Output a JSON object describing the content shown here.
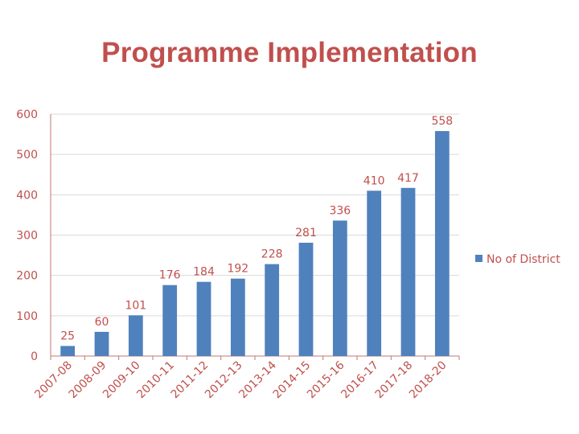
{
  "title": "Programme Implementation",
  "colors": {
    "bar": "#4f81bd",
    "text": "#c0504d",
    "axis": "#c07874",
    "grid": "#d9d9d9"
  },
  "chart_data": {
    "type": "bar",
    "title": "",
    "xlabel": "",
    "ylabel": "",
    "categories": [
      "2007-08",
      "2008-09",
      "2009-10",
      "2010-11",
      "2011-12",
      "2012-13",
      "2013-14",
      "2014-15",
      "2015-16",
      "2016-17",
      "2017-18",
      "2018-20"
    ],
    "series": [
      {
        "name": "No of District",
        "values": [
          25,
          60,
          101,
          176,
          184,
          192,
          228,
          281,
          336,
          410,
          417,
          558
        ]
      }
    ],
    "ylim": [
      0,
      600
    ],
    "yticks": [
      0,
      100,
      200,
      300,
      400,
      500,
      600
    ],
    "grid": true,
    "legend_position": "right",
    "data_labels": true
  }
}
